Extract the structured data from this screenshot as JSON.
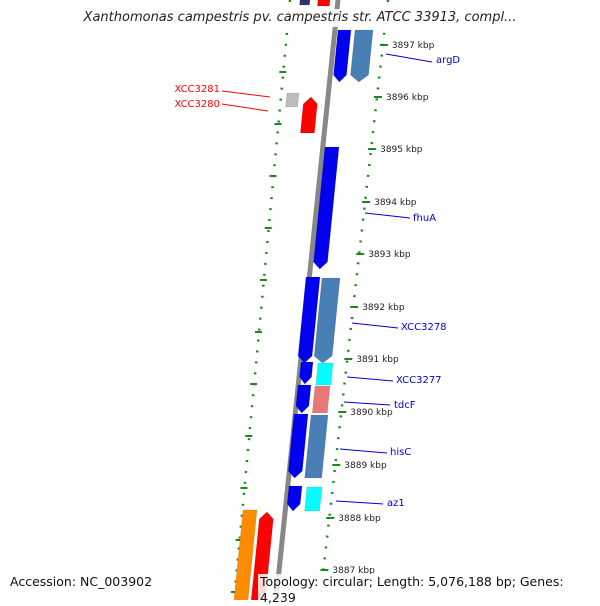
{
  "title": "Xanthomonas campestris pv. campestris str. ATCC 33913, compl...",
  "accession": "Accession: NC_003902",
  "summary": "Topology: circular; Length: 5,076,188 bp; Genes: 4,239",
  "colors": {
    "backbone": "#888888",
    "ruler": "#1a8a1a",
    "cds_blue": "#0000ee",
    "cds_steel": "#4a7fb5",
    "cds_cyan": "#00ffff",
    "cds_red": "#ff0000",
    "cds_pink": "#e87878",
    "cds_grey": "#bbbbbb",
    "cds_orange": "#ff8c00",
    "cds_dark": "#333366",
    "label_blue": "#0000cc",
    "label_red": "#ff0000"
  },
  "kbp_ticks": [
    "3897 kbp",
    "3896 kbp",
    "3895 kbp",
    "3894 kbp",
    "3893 kbp",
    "3892 kbp",
    "3891 kbp",
    "3890 kbp",
    "3889 kbp",
    "3888 kbp",
    "3887 kbp"
  ],
  "gene_labels": [
    {
      "text": "argD",
      "color": "label_blue"
    },
    {
      "text": "XCC3281",
      "color": "label_red"
    },
    {
      "text": "XCC3280",
      "color": "label_red"
    },
    {
      "text": "fhuA",
      "color": "label_blue"
    },
    {
      "text": "XCC3278",
      "color": "label_blue"
    },
    {
      "text": "XCC3277",
      "color": "label_blue"
    },
    {
      "text": "tdcF",
      "color": "label_blue"
    },
    {
      "text": "hisC",
      "color": "label_blue"
    },
    {
      "text": "az1",
      "color": "label_blue"
    }
  ]
}
